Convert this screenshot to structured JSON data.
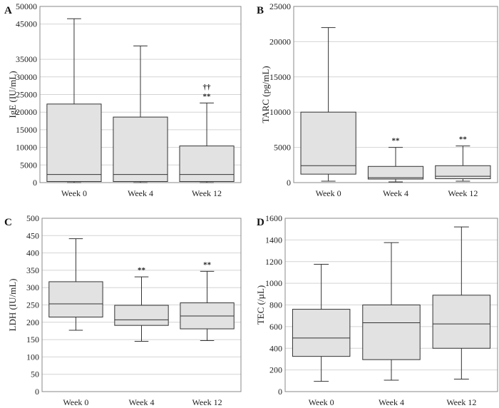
{
  "chart_data": [
    {
      "panel": "A",
      "type": "box",
      "ylabel": "IgE (IU/mL)",
      "ylim": [
        0,
        50000
      ],
      "yticks": [
        0,
        5000,
        10000,
        15000,
        20000,
        25000,
        30000,
        35000,
        45000,
        50000
      ],
      "grid": true,
      "categories": [
        "Week 0",
        "Week 4",
        "Week 12"
      ],
      "boxes": [
        {
          "min": 0,
          "q1": 300,
          "median": 2300,
          "q3": 22300,
          "max": 46500,
          "annotation": ""
        },
        {
          "min": 0,
          "q1": 300,
          "median": 2300,
          "q3": 18600,
          "max": 38800,
          "annotation": "",
          "annotation2": ""
        },
        {
          "min": 0,
          "q1": 300,
          "median": 2300,
          "q3": 10400,
          "max": 22600,
          "annotation": "**",
          "annotation2": "††"
        }
      ]
    },
    {
      "panel": "B",
      "type": "box",
      "ylabel": "TARC (pg/mL)",
      "ylim": [
        0,
        25000
      ],
      "yticks": [
        0,
        5000,
        10000,
        15000,
        20000,
        25000
      ],
      "grid": true,
      "categories": [
        "Week 0",
        "Week 4",
        "Week 12"
      ],
      "boxes": [
        {
          "min": 200,
          "q1": 1200,
          "median": 2400,
          "q3": 10000,
          "max": 22000,
          "annotation": ""
        },
        {
          "min": 100,
          "q1": 500,
          "median": 700,
          "q3": 2300,
          "max": 5000,
          "annotation": "**"
        },
        {
          "min": 200,
          "q1": 550,
          "median": 900,
          "q3": 2400,
          "max": 5200,
          "annotation": "**"
        }
      ]
    },
    {
      "panel": "C",
      "type": "box",
      "ylabel": "LDH (IU/mL)",
      "ylim": [
        0,
        500
      ],
      "yticks": [
        0,
        50,
        100,
        150,
        200,
        250,
        300,
        350,
        400,
        450,
        500
      ],
      "grid": true,
      "categories": [
        "Week 0",
        "Week 4",
        "Week 12"
      ],
      "boxes": [
        {
          "min": 177,
          "q1": 215,
          "median": 253,
          "q3": 317,
          "max": 441,
          "annotation": ""
        },
        {
          "min": 145,
          "q1": 191,
          "median": 207,
          "q3": 249,
          "max": 331,
          "annotation": "**"
        },
        {
          "min": 147,
          "q1": 181,
          "median": 218,
          "q3": 256,
          "max": 347,
          "annotation": "**"
        }
      ]
    },
    {
      "panel": "D",
      "type": "box",
      "ylabel": "TEC (/µL)",
      "ylim": [
        0,
        1600
      ],
      "yticks": [
        0,
        200,
        400,
        600,
        800,
        1000,
        1200,
        1400,
        1600
      ],
      "grid": true,
      "categories": [
        "Week 0",
        "Week 4",
        "Week 12"
      ],
      "boxes": [
        {
          "min": 95,
          "q1": 325,
          "median": 495,
          "q3": 760,
          "max": 1175,
          "annotation": ""
        },
        {
          "min": 105,
          "q1": 295,
          "median": 635,
          "q3": 800,
          "max": 1375,
          "annotation": ""
        },
        {
          "min": 115,
          "q1": 400,
          "median": 625,
          "q3": 890,
          "max": 1520,
          "annotation": ""
        }
      ]
    }
  ]
}
